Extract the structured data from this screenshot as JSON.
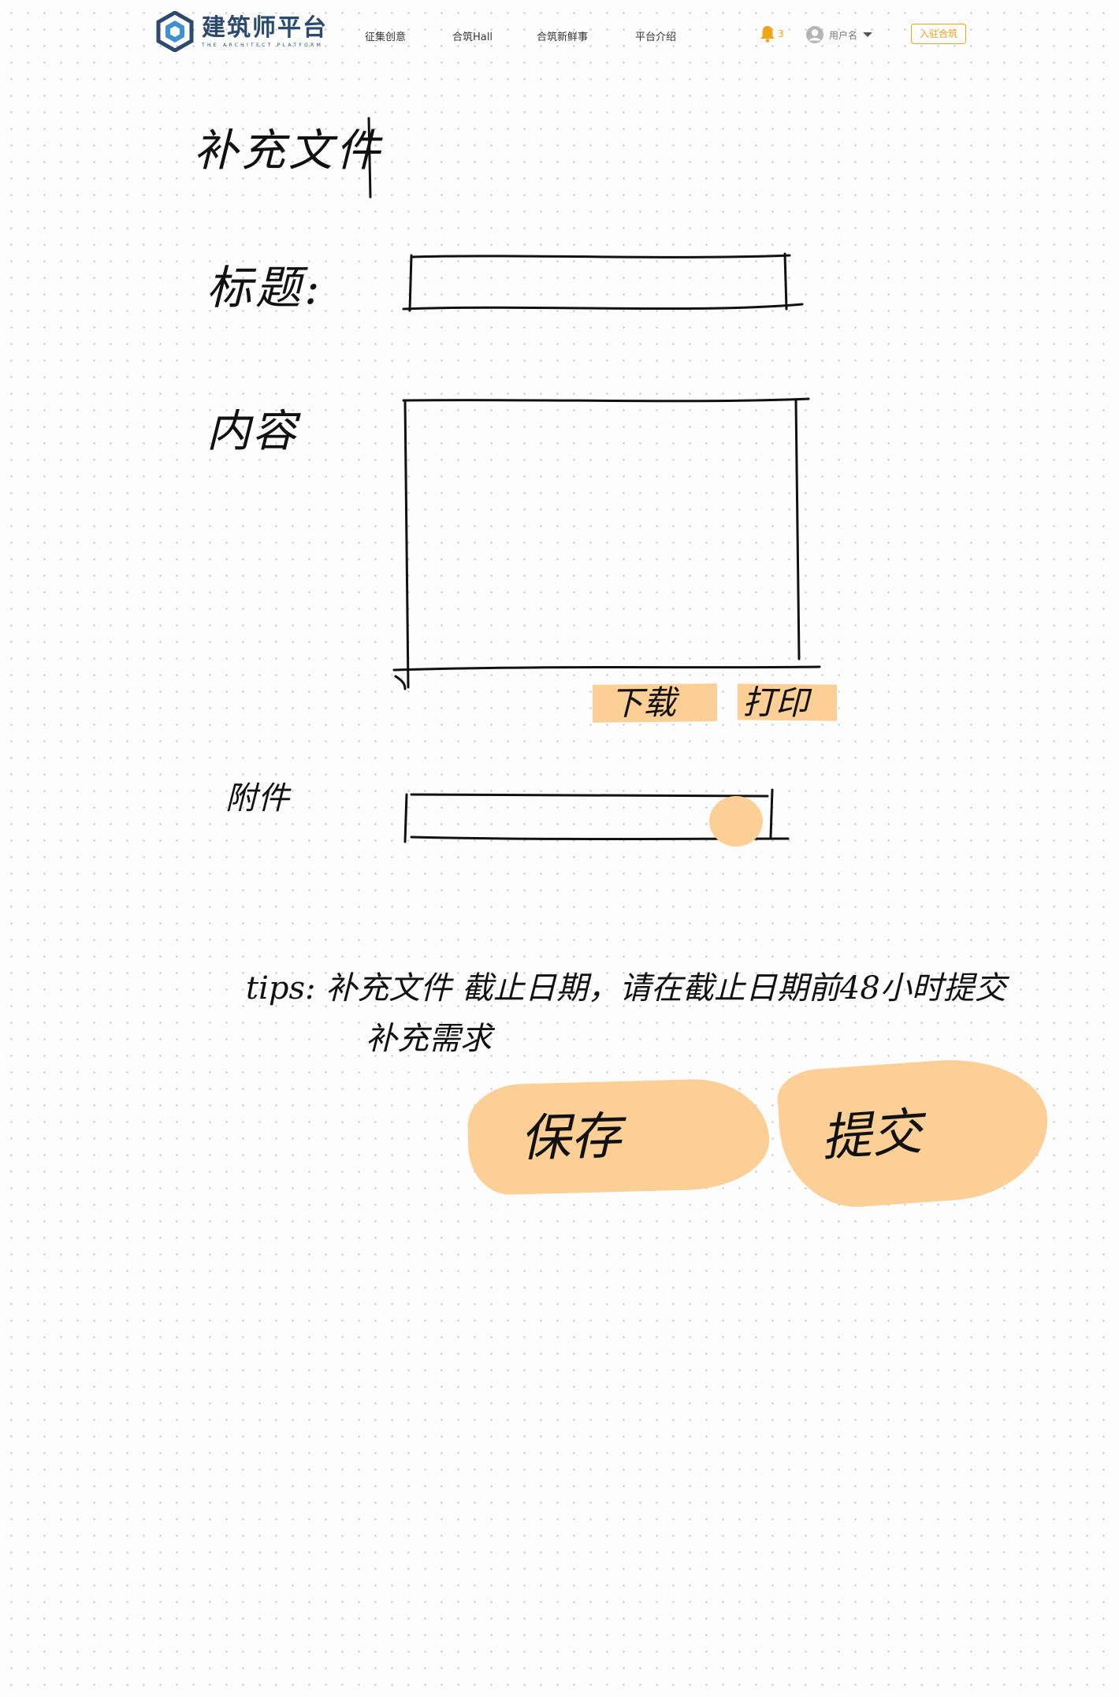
{
  "header": {
    "logo_title": "建筑师平台",
    "logo_subtitle": "THE ARCHITECT PLATFORM",
    "nav": [
      "征集创意",
      "合筑Hall",
      "合筑新鲜事",
      "平台介绍"
    ],
    "notification_count": "3",
    "username": "用户名",
    "join_label": "入驻合筑",
    "accent_color": "#f3a316",
    "brand_color": "#2c4a6e"
  },
  "form": {
    "page_title": "补充文件",
    "title_label": "标题:",
    "content_label": "内容",
    "attachment_label": "附件",
    "download_label": "下载",
    "print_label": "打印",
    "tips_line1": "tips: 补充文件 截止日期，请在截止日期前48小时提交",
    "tips_line2": "补充需求",
    "save_label": "保存",
    "submit_label": "提交",
    "highlight_color": "#fbcf96"
  }
}
